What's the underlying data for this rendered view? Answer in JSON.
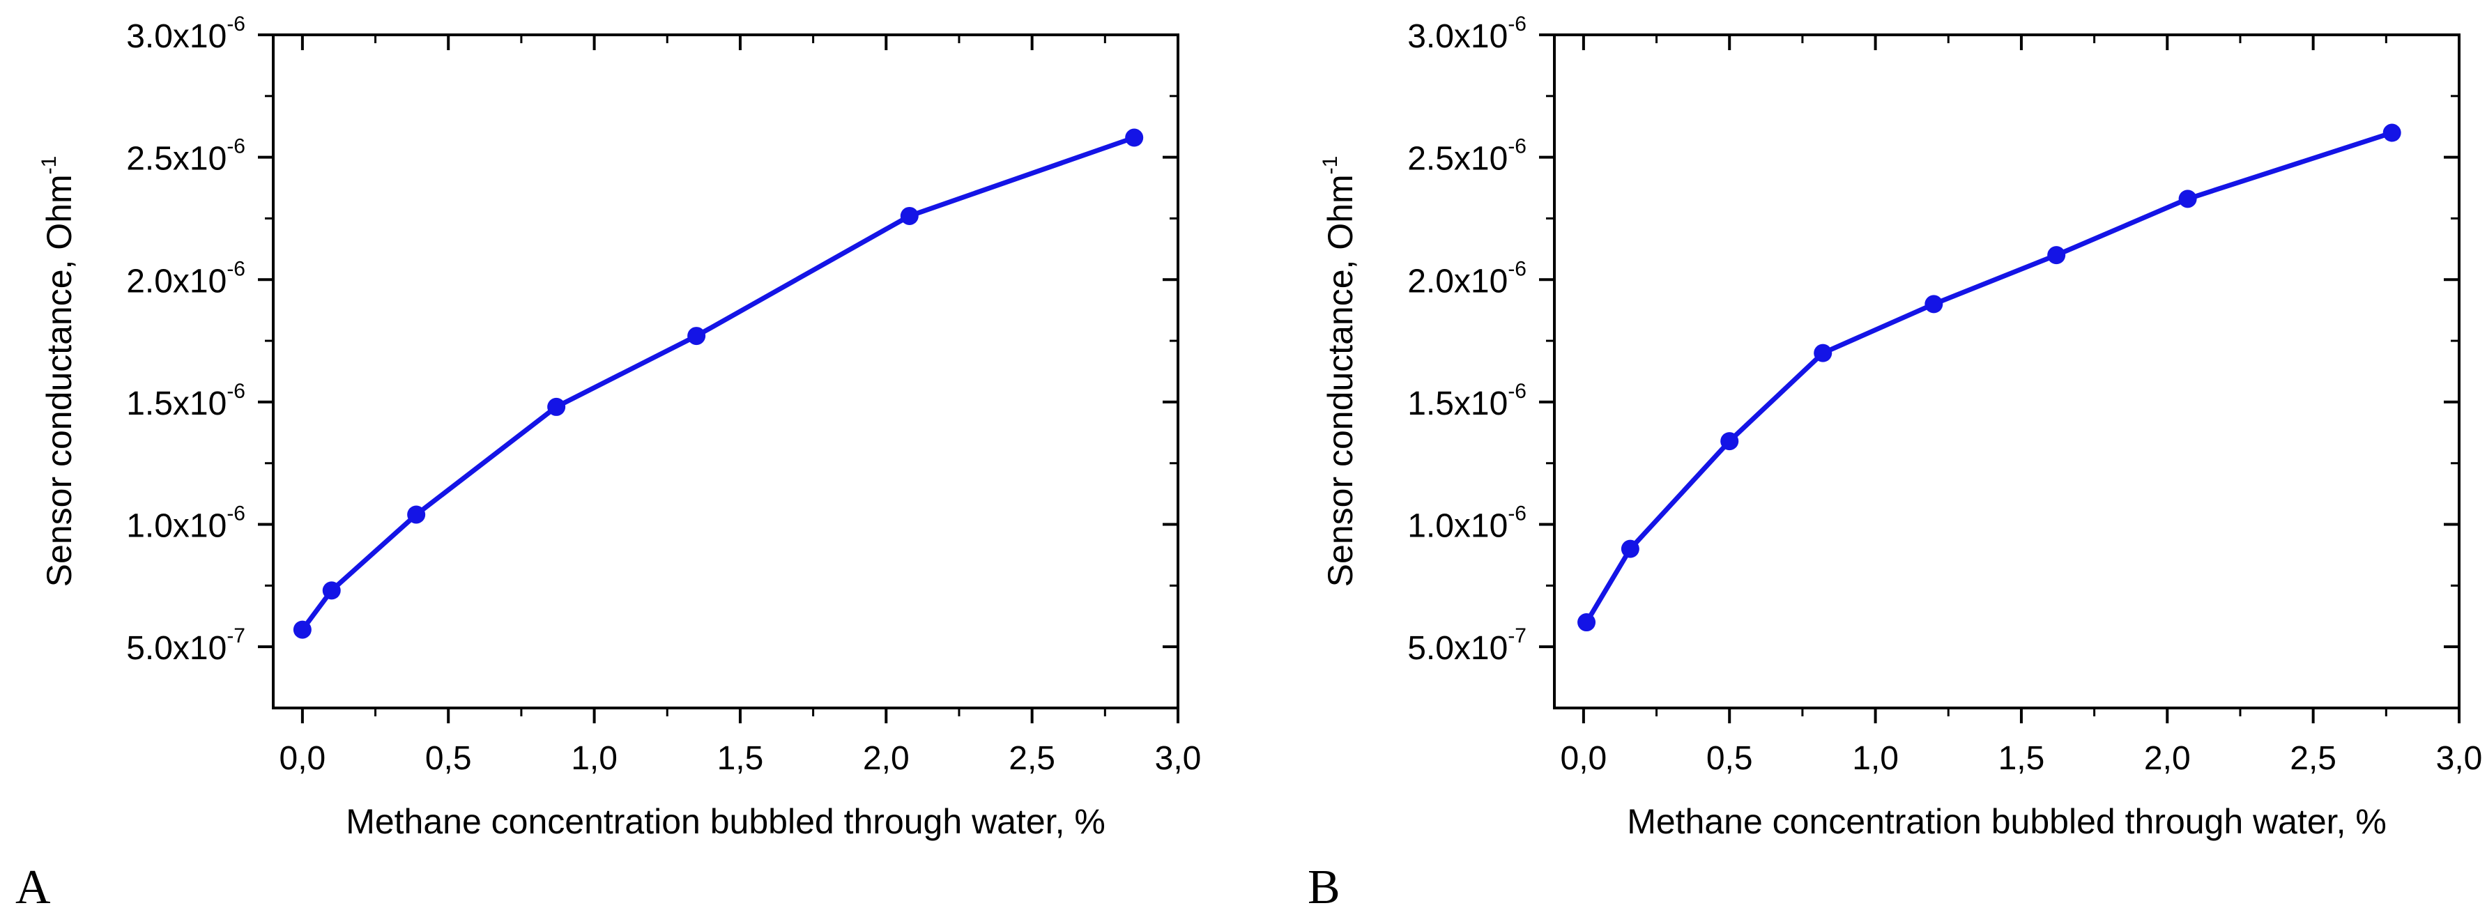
{
  "chart_data": [
    {
      "type": "line",
      "panel_label": "A",
      "title": "",
      "xlabel": "Methane concentration bubbled through water, %",
      "ylabel": {
        "text": "Sensor conductance, Ohm",
        "superscript": "-1"
      },
      "xlim": [
        -0.1,
        3.0
      ],
      "ylim": [
        2.5e-07,
        3e-06
      ],
      "xticks": [
        {
          "value": 0.0,
          "label": "0,0"
        },
        {
          "value": 0.5,
          "label": "0,5"
        },
        {
          "value": 1.0,
          "label": "1,0"
        },
        {
          "value": 1.5,
          "label": "1,5"
        },
        {
          "value": 2.0,
          "label": "2,0"
        },
        {
          "value": 2.5,
          "label": "2,5"
        },
        {
          "value": 3.0,
          "label": "3,0"
        }
      ],
      "yticks": [
        {
          "value": 5e-07,
          "mantissa": "5.0x10",
          "exponent": "-7"
        },
        {
          "value": 1e-06,
          "mantissa": "1.0x10",
          "exponent": "-6"
        },
        {
          "value": 1.5e-06,
          "mantissa": "1.5x10",
          "exponent": "-6"
        },
        {
          "value": 2e-06,
          "mantissa": "2.0x10",
          "exponent": "-6"
        },
        {
          "value": 2.5e-06,
          "mantissa": "2.5x10",
          "exponent": "-6"
        },
        {
          "value": 3e-06,
          "mantissa": "3.0x10",
          "exponent": "-6"
        }
      ],
      "series": [
        {
          "name": "Sensor conductance",
          "color": "#1414e6",
          "x": [
            0.0,
            0.1,
            0.39,
            0.87,
            1.35,
            2.08,
            2.85
          ],
          "y": [
            5.7e-07,
            7.3e-07,
            1.04e-06,
            1.48e-06,
            1.77e-06,
            2.26e-06,
            2.58e-06
          ]
        }
      ]
    },
    {
      "type": "line",
      "panel_label": "B",
      "title": "",
      "xlabel": "Methane concentration bubbled through water, %",
      "ylabel": {
        "text": "Sensor conductance, Ohm",
        "superscript": "-1"
      },
      "xlim": [
        -0.1,
        3.0
      ],
      "ylim": [
        2.5e-07,
        3e-06
      ],
      "xticks": [
        {
          "value": 0.0,
          "label": "0,0"
        },
        {
          "value": 0.5,
          "label": "0,5"
        },
        {
          "value": 1.0,
          "label": "1,0"
        },
        {
          "value": 1.5,
          "label": "1,5"
        },
        {
          "value": 2.0,
          "label": "2,0"
        },
        {
          "value": 2.5,
          "label": "2,5"
        },
        {
          "value": 3.0,
          "label": "3,0"
        }
      ],
      "yticks": [
        {
          "value": 5e-07,
          "mantissa": "5.0x10",
          "exponent": "-7"
        },
        {
          "value": 1e-06,
          "mantissa": "1.0x10",
          "exponent": "-6"
        },
        {
          "value": 1.5e-06,
          "mantissa": "1.5x10",
          "exponent": "-6"
        },
        {
          "value": 2e-06,
          "mantissa": "2.0x10",
          "exponent": "-6"
        },
        {
          "value": 2.5e-06,
          "mantissa": "2.5x10",
          "exponent": "-6"
        },
        {
          "value": 3e-06,
          "mantissa": "3.0x10",
          "exponent": "-6"
        }
      ],
      "series": [
        {
          "name": "Sensor conductance",
          "color": "#1414e6",
          "x": [
            0.01,
            0.16,
            0.5,
            0.82,
            1.2,
            1.62,
            2.07,
            2.77
          ],
          "y": [
            6e-07,
            9e-07,
            1.34e-06,
            1.7e-06,
            1.9e-06,
            2.1e-06,
            2.33e-06,
            2.6e-06
          ]
        }
      ]
    }
  ]
}
